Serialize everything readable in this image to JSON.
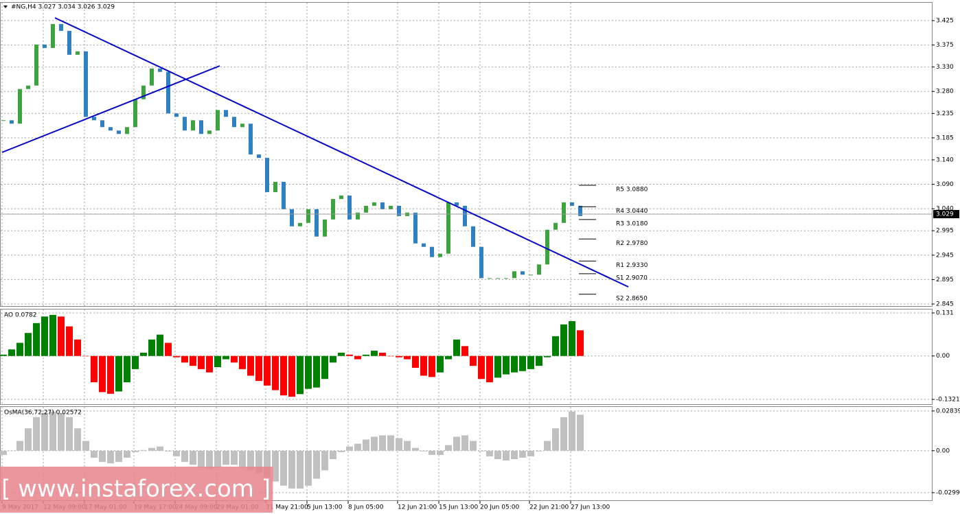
{
  "chart_data": [
    {
      "type": "candlestick",
      "title": "#NG,H4  3.027 3.034 3.026 3.029",
      "categories": [
        "9 May 2017",
        null,
        null,
        null,
        null,
        "12 May 09:00",
        null,
        null,
        null,
        null,
        "17 May 01:00",
        null,
        null,
        null,
        null,
        null,
        "19 May 17:00",
        null,
        null,
        null,
        null,
        "24 May 09:00",
        null,
        null,
        null,
        null,
        "29 May 01:00",
        null,
        null,
        null,
        null,
        null,
        "31 May 21:00",
        null,
        null,
        null,
        null,
        "5 Jun 13:00",
        null,
        null,
        null,
        null,
        "8 Jun 05:00",
        null,
        null,
        null,
        null,
        null,
        "12 Jun 21:00",
        null,
        null,
        null,
        null,
        "15 Jun 13:00",
        null,
        null,
        null,
        null,
        "20 Jun 05:00",
        null,
        null,
        null,
        null,
        null,
        "22 Jun 21:00",
        null,
        null,
        null,
        null,
        "27 Jun 13:00",
        null
      ],
      "values": [
        3.221,
        3.214,
        3.285,
        3.292,
        3.376,
        3.369,
        3.418,
        3.404,
        3.355,
        3.362,
        3.228,
        3.221,
        3.207,
        3.2,
        3.193,
        3.207,
        3.264,
        3.292,
        3.327,
        3.32,
        3.235,
        3.228,
        3.2,
        3.221,
        3.193,
        3.2,
        3.242,
        3.228,
        3.207,
        3.214,
        3.151,
        3.144,
        3.074,
        3.095,
        3.039,
        3.004,
        3.011,
        3.039,
        2.983,
        3.018,
        3.06,
        3.067,
        3.018,
        3.032,
        3.046,
        3.053,
        3.039,
        3.046,
        3.025,
        3.032,
        2.969,
        2.962,
        2.941,
        2.948,
        3.053,
        3.046,
        3.004,
        2.962,
        2.898,
        2.898,
        2.898,
        2.898,
        2.912,
        2.905,
        2.905,
        2.926,
        2.997,
        3.011,
        3.053,
        3.046,
        3.025
      ],
      "up_color": "#3da33d",
      "down_color": "#2f80c0",
      "ylim": [
        2.8408,
        3.4615
      ],
      "yticks": [
        3.425,
        3.375,
        {
          "value": 3.33,
          "label": "3.330"
        },
        {
          "value": 3.28,
          "label": "3.280"
        },
        3.235,
        3.185,
        {
          "value": 3.14,
          "label": "3.140"
        },
        {
          "value": 3.09,
          "label": "3.090"
        },
        {
          "value": 3.04,
          "label": "3.040"
        },
        2.995,
        2.945,
        2.895,
        2.845
      ],
      "last_price": 3.029,
      "levels": [
        {
          "label": "R5 3.0880",
          "value": 3.088
        },
        {
          "label": "R4 3.0440",
          "value": 3.044
        },
        {
          "label": "R3 3.0180",
          "value": 3.018
        },
        {
          "label": "R2 2.9780",
          "value": 2.978
        },
        {
          "label": "R1 2.9330",
          "value": 2.933
        },
        {
          "label": "S1 2.9070",
          "value": 2.907
        },
        {
          "label": "S2 2.8650",
          "value": 2.865
        }
      ],
      "grid": true
    },
    {
      "type": "bar",
      "title": "AO 0.0782",
      "values": [
        0.004,
        0.02,
        0.04,
        0.07,
        0.1,
        0.12,
        0.125,
        0.12,
        0.09,
        0.05,
        0,
        -0.08,
        -0.11,
        -0.115,
        -0.108,
        -0.08,
        -0.04,
        0.01,
        0.05,
        0.065,
        0.04,
        -0.004,
        -0.02,
        -0.03,
        -0.04,
        -0.05,
        -0.034,
        -0.01,
        -0.02,
        -0.04,
        -0.06,
        -0.076,
        -0.09,
        -0.104,
        -0.12,
        -0.124,
        -0.116,
        -0.1,
        -0.096,
        -0.07,
        -0.02,
        0.01,
        0.004,
        -0.01,
        0.004,
        0.016,
        0.01,
        0,
        -0.004,
        -0.01,
        -0.036,
        -0.06,
        -0.064,
        -0.05,
        -0.01,
        0.05,
        0.03,
        -0.03,
        -0.07,
        -0.08,
        -0.066,
        -0.056,
        -0.05,
        -0.046,
        -0.04,
        -0.03,
        -0.004,
        0.06,
        0.096,
        0.106,
        0.0782
      ],
      "up_color": "#008000",
      "down_color": "#ff0000",
      "ylim": [
        -0.1467,
        0.1414
      ],
      "yticks": [
        0.131,
        {
          "value": 0,
          "label": "0.00"
        },
        -0.1321
      ],
      "grid": true
    },
    {
      "type": "bar",
      "title": "OsMA(36,72,27) 0.02572",
      "values": [
        -0.003,
        0,
        0.007,
        0.016,
        0.024,
        0.027,
        0.028,
        0.027,
        0.024,
        0.016,
        0.007,
        -0.005,
        -0.008,
        -0.009,
        -0.008,
        -0.005,
        -0.001,
        0.0005,
        0.002,
        0.003,
        -0.0005,
        -0.004,
        -0.008,
        -0.01,
        -0.012,
        -0.013,
        -0.012,
        -0.01,
        -0.01,
        -0.012,
        -0.014,
        -0.016,
        -0.019,
        -0.022,
        -0.025,
        -0.027,
        -0.027,
        -0.025,
        -0.02,
        -0.014,
        -0.006,
        -0.001,
        0.003,
        0.005,
        0.008,
        0.01,
        0.011,
        0.011,
        0.009,
        0.007,
        0.002,
        -0.0005,
        -0.003,
        -0.003,
        0.004,
        0.01,
        0.011,
        0.007,
        -0.0005,
        -0.004,
        -0.006,
        -0.007,
        -0.006,
        -0.005,
        -0.004,
        -0.0005,
        0.007,
        0.016,
        0.024,
        0.028,
        0.02572
      ],
      "color": "#c0c0c0",
      "ylim": [
        -0.0354,
        0.03128
      ],
      "yticks": [
        0.02839,
        {
          "value": 0,
          "label": "0.00"
        },
        -0.02996
      ],
      "grid": true
    }
  ],
  "watermark": "[ www.instaforex.com ]"
}
